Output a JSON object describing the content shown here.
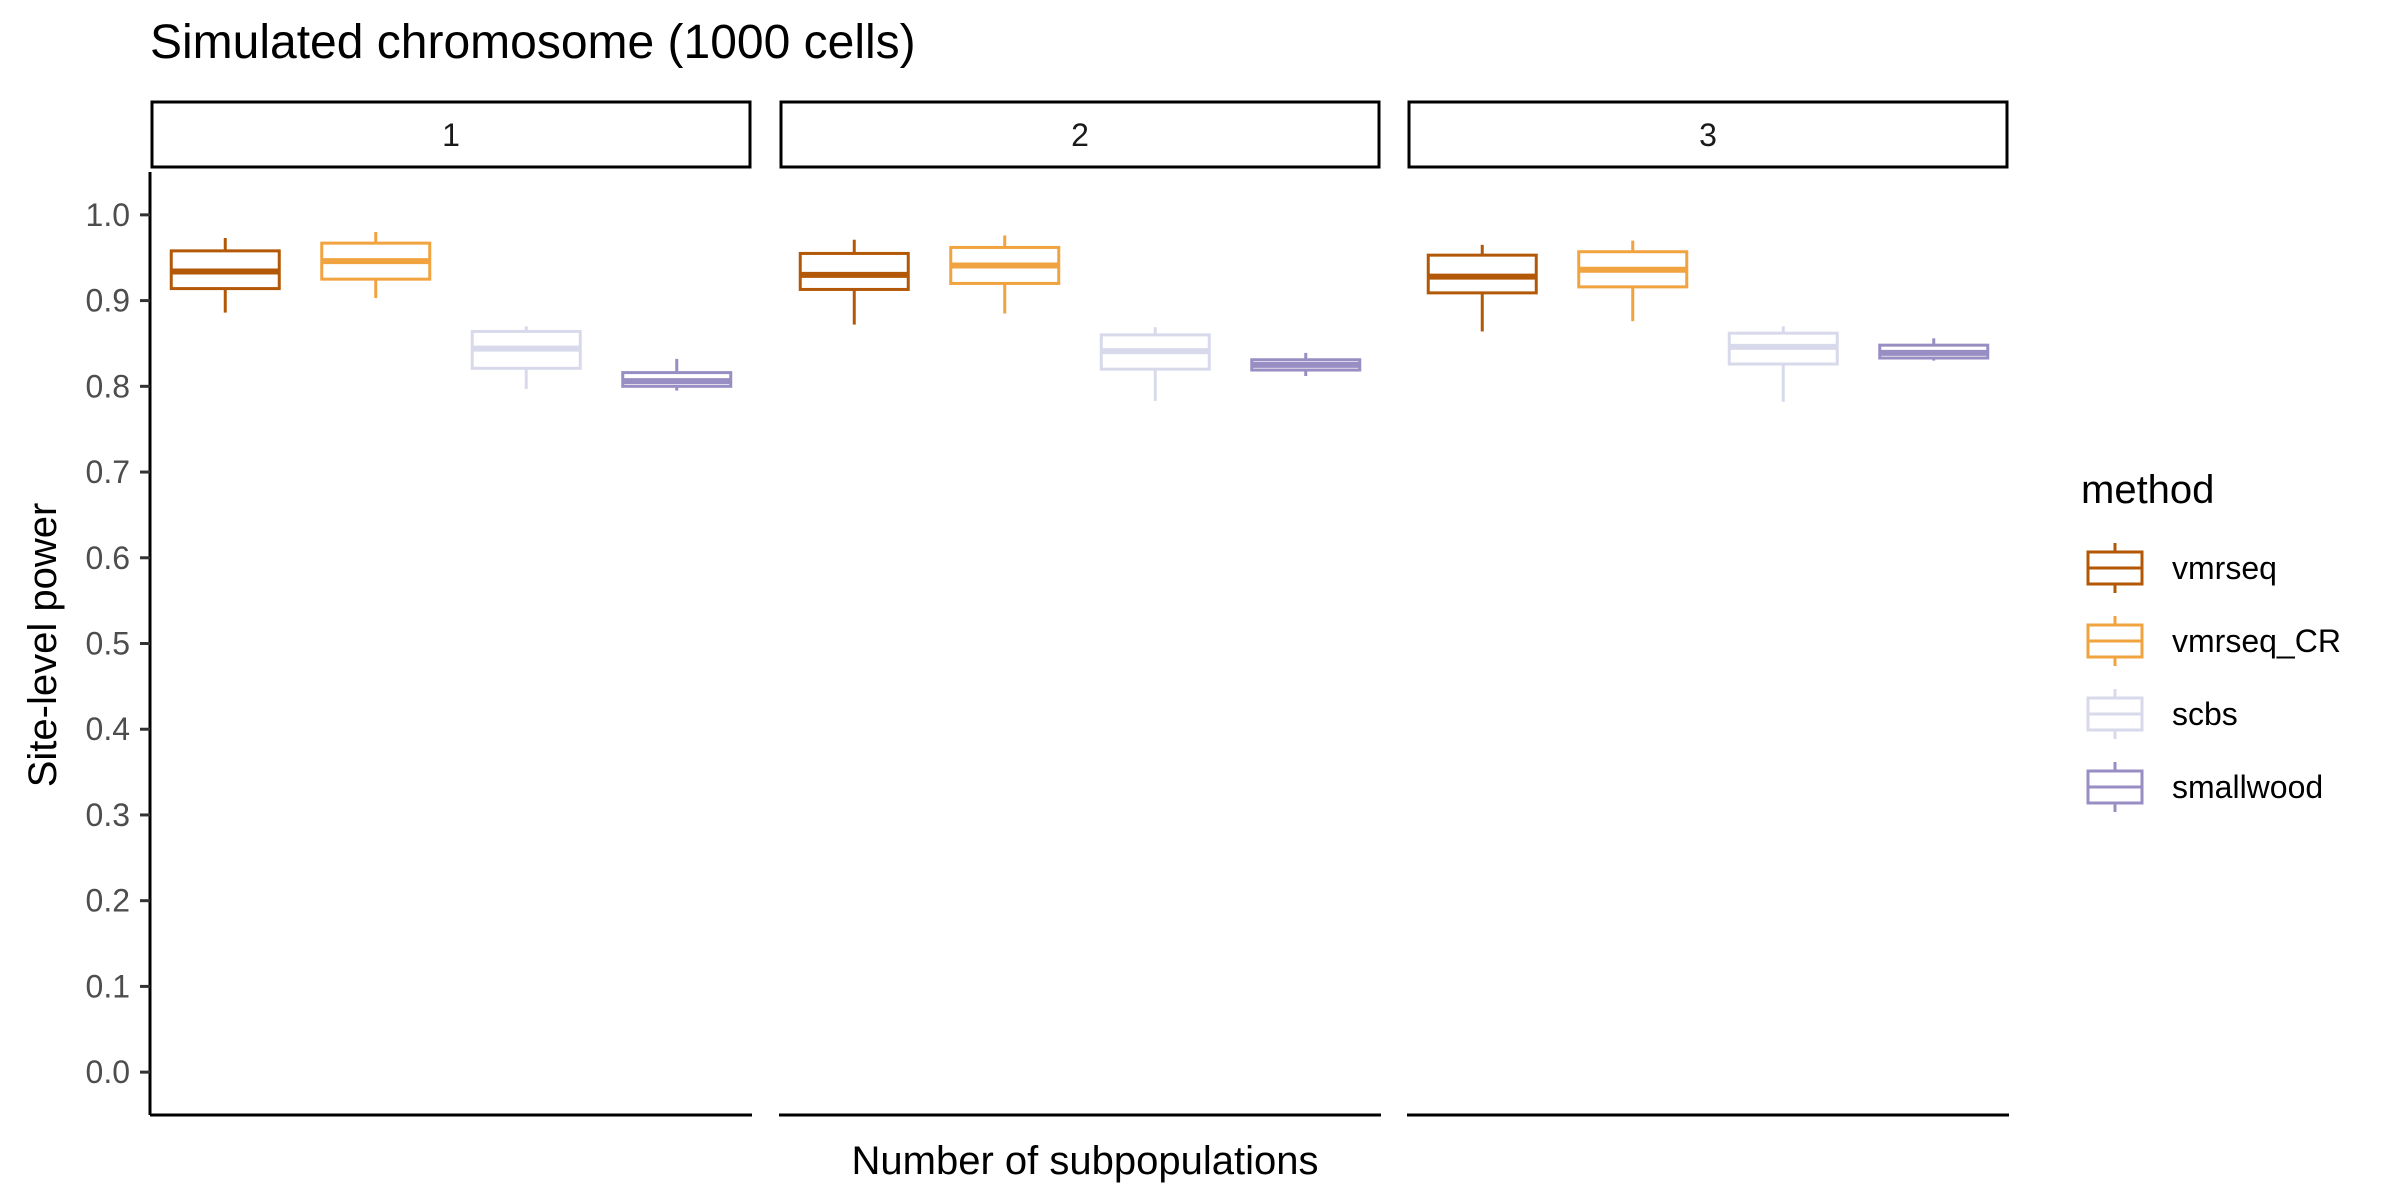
{
  "chart_data": {
    "type": "boxplot",
    "title": "Simulated chromosome (1000 cells)",
    "xlabel": "Number of subpopulations",
    "ylabel": "Site-level power",
    "ylim": [
      -0.05,
      1.05
    ],
    "yticks": [
      "0.0",
      "0.1",
      "0.2",
      "0.3",
      "0.4",
      "0.5",
      "0.6",
      "0.7",
      "0.8",
      "0.9",
      "1.0"
    ],
    "facets": [
      "1",
      "2",
      "3"
    ],
    "grid": false,
    "legend": {
      "title": "method",
      "position": "right",
      "entries": [
        "vmrseq",
        "vmrseq_CR",
        "scbs",
        "smallwood"
      ]
    },
    "series": [
      {
        "name": "vmrseq",
        "color": "#B35806",
        "boxes": [
          {
            "facet": "1",
            "min": 0.886,
            "q1": 0.914,
            "median": 0.934,
            "q3": 0.958,
            "max": 0.973
          },
          {
            "facet": "2",
            "min": 0.872,
            "q1": 0.913,
            "median": 0.93,
            "q3": 0.955,
            "max": 0.971
          },
          {
            "facet": "3",
            "min": 0.864,
            "q1": 0.909,
            "median": 0.928,
            "q3": 0.953,
            "max": 0.965
          }
        ]
      },
      {
        "name": "vmrseq_CR",
        "color": "#F1A340",
        "boxes": [
          {
            "facet": "1",
            "min": 0.903,
            "q1": 0.925,
            "median": 0.946,
            "q3": 0.967,
            "max": 0.98
          },
          {
            "facet": "2",
            "min": 0.885,
            "q1": 0.92,
            "median": 0.941,
            "q3": 0.962,
            "max": 0.976
          },
          {
            "facet": "3",
            "min": 0.876,
            "q1": 0.916,
            "median": 0.936,
            "q3": 0.957,
            "max": 0.97
          }
        ]
      },
      {
        "name": "scbs",
        "color": "#D8DAEB",
        "boxes": [
          {
            "facet": "1",
            "min": 0.797,
            "q1": 0.821,
            "median": 0.844,
            "q3": 0.864,
            "max": 0.87
          },
          {
            "facet": "2",
            "min": 0.783,
            "q1": 0.82,
            "median": 0.841,
            "q3": 0.86,
            "max": 0.869
          },
          {
            "facet": "3",
            "min": 0.782,
            "q1": 0.826,
            "median": 0.846,
            "q3": 0.862,
            "max": 0.87
          }
        ]
      },
      {
        "name": "smallwood",
        "color": "#998EC3",
        "boxes": [
          {
            "facet": "1",
            "min": 0.795,
            "q1": 0.8,
            "median": 0.806,
            "q3": 0.816,
            "max": 0.832
          },
          {
            "facet": "2",
            "min": 0.812,
            "q1": 0.819,
            "median": 0.825,
            "q3": 0.831,
            "max": 0.839
          },
          {
            "facet": "3",
            "min": 0.83,
            "q1": 0.833,
            "median": 0.839,
            "q3": 0.848,
            "max": 0.856
          }
        ]
      }
    ]
  }
}
